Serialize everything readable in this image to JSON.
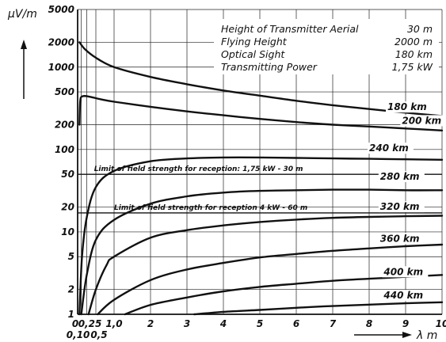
{
  "chart_data": {
    "type": "line",
    "title": "",
    "xlabel": "λ m",
    "ylabel": "µV/m",
    "x_axis": {
      "range": [
        0,
        10
      ],
      "scale": "linear",
      "ticks": [
        {
          "value": 0,
          "label": "0"
        },
        {
          "value": 0.1,
          "label": "0,10"
        },
        {
          "value": 0.25,
          "label": "0,25"
        },
        {
          "value": 0.5,
          "label": "0,5"
        },
        {
          "value": 1,
          "label": "1,0"
        },
        {
          "value": 2,
          "label": "2"
        },
        {
          "value": 3,
          "label": "3"
        },
        {
          "value": 4,
          "label": "4"
        },
        {
          "value": 5,
          "label": "5"
        },
        {
          "value": 6,
          "label": "6"
        },
        {
          "value": 7,
          "label": "7"
        },
        {
          "value": 8,
          "label": "8"
        },
        {
          "value": 9,
          "label": "9"
        },
        {
          "value": 10,
          "label": "10"
        }
      ],
      "grid_lines": [
        0,
        0.1,
        0.25,
        0.5,
        1,
        2,
        3,
        4,
        5,
        6,
        7,
        8,
        9,
        10
      ]
    },
    "y_axis": {
      "range": [
        1,
        5000
      ],
      "scale": "log",
      "ticks": [
        {
          "value": 1,
          "label": "1"
        },
        {
          "value": 2,
          "label": "2"
        },
        {
          "value": 5,
          "label": "5"
        },
        {
          "value": 10,
          "label": "10"
        },
        {
          "value": 20,
          "label": "20"
        },
        {
          "value": 50,
          "label": "50"
        },
        {
          "value": 100,
          "label": "100"
        },
        {
          "value": 200,
          "label": "200"
        },
        {
          "value": 500,
          "label": "500"
        },
        {
          "value": 1000,
          "label": "1000"
        },
        {
          "value": 2000,
          "label": "2000"
        },
        {
          "value": 5000,
          "label": "5000"
        }
      ],
      "grid_lines": [
        1,
        2,
        5,
        10,
        20,
        50,
        100,
        200,
        500,
        1000,
        2000,
        5000
      ]
    },
    "grid": true,
    "info_box": [
      {
        "label": "Height of Transmitter Aerial",
        "value": "30 m"
      },
      {
        "label": "Flying Height",
        "value": "2000 m"
      },
      {
        "label": "Optical Sight",
        "value": "180 km"
      },
      {
        "label": "Transmitting Power",
        "value": "1,75 kW"
      }
    ],
    "limits": [
      {
        "name": "Limit of field strength for reception: 1,75 kW - 30 m",
        "value": 50
      },
      {
        "name": "Limit of field strength for reception 4 kW - 60 m",
        "value": 17
      }
    ],
    "series": [
      {
        "name": "180 km",
        "label_at": [
          8.5,
          300
        ],
        "x": [
          0.05,
          0.2,
          0.5,
          1,
          2,
          3,
          4,
          5,
          6,
          7,
          8,
          9,
          10
        ],
        "y": [
          2000,
          1650,
          1300,
          1000,
          760,
          620,
          520,
          450,
          390,
          345,
          310,
          280,
          255
        ]
      },
      {
        "name": "200 km",
        "label_at": [
          8.9,
          205
        ],
        "x": [
          0.05,
          0.07,
          0.12,
          0.3,
          0.6,
          1,
          2,
          3,
          4,
          5,
          6,
          7,
          8,
          9,
          10
        ],
        "y": [
          200,
          380,
          440,
          440,
          410,
          380,
          330,
          290,
          260,
          235,
          215,
          200,
          190,
          180,
          170
        ]
      },
      {
        "name": "240 km",
        "label_at": [
          8.0,
          95
        ],
        "x": [
          0.05,
          0.12,
          0.25,
          0.5,
          1,
          2,
          3,
          4,
          5,
          6,
          7,
          8,
          9,
          10
        ],
        "y": [
          1,
          5,
          15,
          35,
          55,
          72,
          78,
          80,
          80,
          79,
          78,
          77,
          76,
          75
        ]
      },
      {
        "name": "280 km",
        "label_at": [
          8.3,
          43
        ],
        "x": [
          0.1,
          0.25,
          0.5,
          1,
          2,
          3,
          4,
          5,
          6,
          7,
          8,
          9,
          10
        ],
        "y": [
          1,
          3,
          8,
          14,
          22,
          27,
          30,
          31.5,
          32,
          32.5,
          32.5,
          32,
          32
        ]
      },
      {
        "name": "320 km",
        "label_at": [
          8.3,
          18.5
        ],
        "x": [
          0.3,
          0.5,
          0.8,
          1,
          2,
          3,
          4,
          5,
          6,
          7,
          8,
          9,
          10
        ],
        "y": [
          1,
          2,
          4,
          5,
          8.5,
          10.5,
          12,
          13.2,
          14.1,
          14.8,
          15.2,
          15.5,
          15.7
        ]
      },
      {
        "name": "360 km",
        "label_at": [
          8.3,
          7.6
        ],
        "x": [
          0.55,
          1,
          2,
          3,
          4,
          5,
          6,
          7,
          8,
          9,
          10
        ],
        "y": [
          1,
          1.5,
          2.6,
          3.5,
          4.2,
          4.9,
          5.4,
          5.9,
          6.3,
          6.7,
          7.0
        ]
      },
      {
        "name": "400 km",
        "label_at": [
          8.4,
          3.0
        ],
        "x": [
          1.3,
          2,
          3,
          4,
          5,
          6,
          7,
          8,
          9,
          10
        ],
        "y": [
          1,
          1.3,
          1.6,
          1.9,
          2.15,
          2.35,
          2.55,
          2.7,
          2.85,
          3.0
        ]
      },
      {
        "name": "440 km",
        "label_at": [
          8.4,
          1.55
        ],
        "x": [
          3.2,
          4,
          5,
          6,
          7,
          8,
          9,
          10
        ],
        "y": [
          1,
          1.07,
          1.13,
          1.2,
          1.26,
          1.31,
          1.36,
          1.4
        ]
      }
    ]
  }
}
